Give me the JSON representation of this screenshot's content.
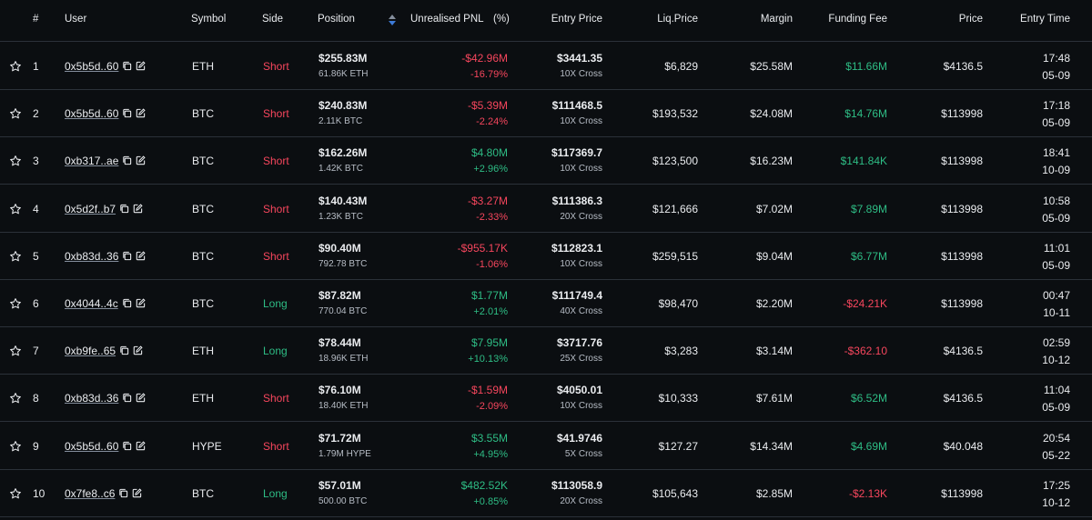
{
  "header": {
    "num": "#",
    "user": "User",
    "symbol": "Symbol",
    "side": "Side",
    "position": "Position",
    "pnl": "Unrealised PNL",
    "pct": "(%)",
    "entry": "Entry Price",
    "liq": "Liq.Price",
    "margin": "Margin",
    "funding": "Funding Fee",
    "price": "Price",
    "time": "Entry Time"
  },
  "colors": {
    "long": "#2ebd85",
    "short": "#f6465d",
    "bg": "#0b0e11",
    "border": "#2b3139"
  },
  "rows": [
    {
      "n": "1",
      "user": "0x5b5d..60",
      "symbol": "ETH",
      "side": "Short",
      "pos": "$255.83M",
      "qty": "61.86K ETH",
      "pnl": "-$42.96M",
      "pct": "-16.79%",
      "entry": "$3441.35",
      "lev": "10X Cross",
      "liq": "$6,829",
      "margin": "$25.58M",
      "fund": "$11.66M",
      "price": "$4136.5",
      "time": "17:48",
      "date": "05-09",
      "pnlPos": false,
      "fundPos": true
    },
    {
      "n": "2",
      "user": "0x5b5d..60",
      "symbol": "BTC",
      "side": "Short",
      "pos": "$240.83M",
      "qty": "2.11K BTC",
      "pnl": "-$5.39M",
      "pct": "-2.24%",
      "entry": "$111468.5",
      "lev": "10X Cross",
      "liq": "$193,532",
      "margin": "$24.08M",
      "fund": "$14.76M",
      "price": "$113998",
      "time": "17:18",
      "date": "05-09",
      "pnlPos": false,
      "fundPos": true
    },
    {
      "n": "3",
      "user": "0xb317..ae",
      "symbol": "BTC",
      "side": "Short",
      "pos": "$162.26M",
      "qty": "1.42K BTC",
      "pnl": "$4.80M",
      "pct": "+2.96%",
      "entry": "$117369.7",
      "lev": "10X Cross",
      "liq": "$123,500",
      "margin": "$16.23M",
      "fund": "$141.84K",
      "price": "$113998",
      "time": "18:41",
      "date": "10-09",
      "pnlPos": true,
      "fundPos": true
    },
    {
      "n": "4",
      "user": "0x5d2f..b7",
      "symbol": "BTC",
      "side": "Short",
      "pos": "$140.43M",
      "qty": "1.23K BTC",
      "pnl": "-$3.27M",
      "pct": "-2.33%",
      "entry": "$111386.3",
      "lev": "20X Cross",
      "liq": "$121,666",
      "margin": "$7.02M",
      "fund": "$7.89M",
      "price": "$113998",
      "time": "10:58",
      "date": "05-09",
      "pnlPos": false,
      "fundPos": true
    },
    {
      "n": "5",
      "user": "0xb83d..36",
      "symbol": "BTC",
      "side": "Short",
      "pos": "$90.40M",
      "qty": "792.78 BTC",
      "pnl": "-$955.17K",
      "pct": "-1.06%",
      "entry": "$112823.1",
      "lev": "10X Cross",
      "liq": "$259,515",
      "margin": "$9.04M",
      "fund": "$6.77M",
      "price": "$113998",
      "time": "11:01",
      "date": "05-09",
      "pnlPos": false,
      "fundPos": true
    },
    {
      "n": "6",
      "user": "0x4044..4c",
      "symbol": "BTC",
      "side": "Long",
      "pos": "$87.82M",
      "qty": "770.04 BTC",
      "pnl": "$1.77M",
      "pct": "+2.01%",
      "entry": "$111749.4",
      "lev": "40X Cross",
      "liq": "$98,470",
      "margin": "$2.20M",
      "fund": "-$24.21K",
      "price": "$113998",
      "time": "00:47",
      "date": "10-11",
      "pnlPos": true,
      "fundPos": false
    },
    {
      "n": "7",
      "user": "0xb9fe..65",
      "symbol": "ETH",
      "side": "Long",
      "pos": "$78.44M",
      "qty": "18.96K ETH",
      "pnl": "$7.95M",
      "pct": "+10.13%",
      "entry": "$3717.76",
      "lev": "25X Cross",
      "liq": "$3,283",
      "margin": "$3.14M",
      "fund": "-$362.10",
      "price": "$4136.5",
      "time": "02:59",
      "date": "10-12",
      "pnlPos": true,
      "fundPos": false
    },
    {
      "n": "8",
      "user": "0xb83d..36",
      "symbol": "ETH",
      "side": "Short",
      "pos": "$76.10M",
      "qty": "18.40K ETH",
      "pnl": "-$1.59M",
      "pct": "-2.09%",
      "entry": "$4050.01",
      "lev": "10X Cross",
      "liq": "$10,333",
      "margin": "$7.61M",
      "fund": "$6.52M",
      "price": "$4136.5",
      "time": "11:04",
      "date": "05-09",
      "pnlPos": false,
      "fundPos": true
    },
    {
      "n": "9",
      "user": "0x5b5d..60",
      "symbol": "HYPE",
      "side": "Short",
      "pos": "$71.72M",
      "qty": "1.79M HYPE",
      "pnl": "$3.55M",
      "pct": "+4.95%",
      "entry": "$41.9746",
      "lev": "5X Cross",
      "liq": "$127.27",
      "margin": "$14.34M",
      "fund": "$4.69M",
      "price": "$40.048",
      "time": "20:54",
      "date": "05-22",
      "pnlPos": true,
      "fundPos": true
    },
    {
      "n": "10",
      "user": "0x7fe8..c6",
      "symbol": "BTC",
      "side": "Long",
      "pos": "$57.01M",
      "qty": "500.00 BTC",
      "pnl": "$482.52K",
      "pct": "+0.85%",
      "entry": "$113058.9",
      "lev": "20X Cross",
      "liq": "$105,643",
      "margin": "$2.85M",
      "fund": "-$2.13K",
      "price": "$113998",
      "time": "17:25",
      "date": "10-12",
      "pnlPos": true,
      "fundPos": false
    }
  ]
}
